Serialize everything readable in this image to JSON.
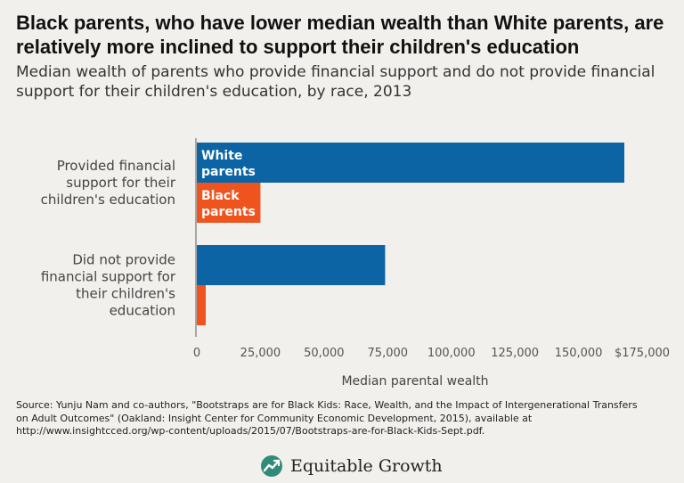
{
  "title_lines": [
    "Black parents, who have lower median wealth than White parents, are",
    "relatively more inclined to support their children's education"
  ],
  "subtitle_lines": [
    "Median wealth of parents who provide financial support and do not provide financial",
    "support for their children's education, by race, 2013"
  ],
  "colors": {
    "white_parents": "#0d64a4",
    "black_parents": "#f0541e",
    "axis": "#777777"
  },
  "chart_data": {
    "type": "bar",
    "orientation": "horizontal",
    "categories": [
      [
        "Provided financial",
        "support for their",
        "children's education"
      ],
      [
        "Did not provide",
        "financial support for",
        "their children's",
        "education"
      ]
    ],
    "series": [
      {
        "name": "White parents",
        "label_lines": [
          "White",
          "parents"
        ],
        "values": [
          168000,
          74000
        ]
      },
      {
        "name": "Black parents",
        "label_lines": [
          "Black",
          "parents"
        ],
        "values": [
          25000,
          3500
        ]
      }
    ],
    "xlim": [
      0,
      175000
    ],
    "xticks": [
      {
        "value": 0,
        "label": "0"
      },
      {
        "value": 25000,
        "label": "25,000"
      },
      {
        "value": 50000,
        "label": "50,000"
      },
      {
        "value": 75000,
        "label": "75,000"
      },
      {
        "value": 100000,
        "label": "100,000"
      },
      {
        "value": 125000,
        "label": "125,000"
      },
      {
        "value": 150000,
        "label": "150,000"
      },
      {
        "value": 175000,
        "label": "$175,000"
      }
    ],
    "xlabel": "Median parental wealth",
    "grid": false
  },
  "source_lines": [
    "Source: Yunju Nam and co-authors, \"Bootstraps are for Black Kids: Race, Wealth, and the Impact of Intergenerational Transfers",
    "on Adult Outcomes\" (Oakland: Insight Center for Community Economic Development, 2015), available at",
    "http://www.insightcced.org/wp-content/uploads/2015/07/Bootstraps-are-for-Black-Kids-Sept.pdf."
  ],
  "logo": {
    "text": "Equitable Growth",
    "icon": "growth-chart-logo-icon"
  }
}
